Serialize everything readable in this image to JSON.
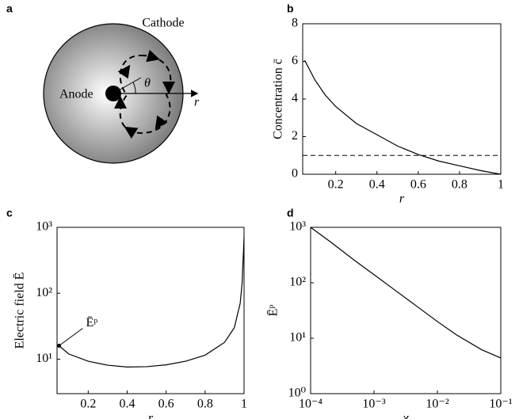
{
  "diagram": {
    "panel": "a",
    "cathode": "Cathode",
    "anode": "Anode",
    "angle": "θ",
    "axis": "r"
  },
  "chart_data": [
    {
      "panel": "b",
      "type": "line",
      "xlabel": "r",
      "ylabel": "Concentration c̄",
      "x": [
        0.05,
        0.1,
        0.15,
        0.2,
        0.3,
        0.4,
        0.5,
        0.6,
        0.7,
        0.8,
        0.9,
        1
      ],
      "values": [
        6.05,
        5.0,
        4.2,
        3.6,
        2.7,
        2.1,
        1.5,
        1.05,
        0.7,
        0.45,
        0.2,
        0
      ],
      "color": "#000000",
      "hline": 1,
      "xlim": [
        0.04,
        1
      ],
      "ylim": [
        0,
        8
      ],
      "xticks": [
        0.2,
        0.4,
        0.6,
        0.8,
        1
      ],
      "yticks": [
        0,
        2,
        4,
        6,
        8
      ]
    },
    {
      "panel": "c",
      "type": "line",
      "ylog": true,
      "xlabel": "r",
      "ylabel": "Electric field Ē",
      "annotation": "Ēᵖ",
      "x": [
        0.05,
        0.1,
        0.2,
        0.3,
        0.4,
        0.5,
        0.6,
        0.7,
        0.8,
        0.9,
        0.95,
        0.98,
        0.99,
        1
      ],
      "values": [
        16,
        12,
        9.3,
        8.1,
        7.6,
        7.7,
        8.2,
        9.3,
        11.5,
        18,
        30,
        70,
        140,
        700
      ],
      "color": "#000000",
      "xlim": [
        0.04,
        1
      ],
      "ylim": [
        3,
        1000
      ],
      "xticks": [
        0.2,
        0.4,
        0.6,
        0.8,
        1
      ],
      "yticks": [
        {
          "value": 10,
          "label": "10¹"
        },
        {
          "value": 100,
          "label": "10²"
        },
        {
          "value": 1000,
          "label": "10³"
        }
      ]
    },
    {
      "panel": "d",
      "type": "line",
      "xlog": true,
      "ylog": true,
      "xlabel": "χ",
      "ylabel": "Ēᵖ",
      "x": [
        0.0001,
        0.0002,
        0.0005,
        0.001,
        0.002,
        0.005,
        0.01,
        0.02,
        0.05,
        0.1
      ],
      "values": [
        1000,
        560,
        250,
        140,
        78,
        36,
        20,
        11.5,
        6.2,
        4.4
      ],
      "color": "#000000",
      "xlim": [
        0.0001,
        0.1
      ],
      "ylim": [
        1,
        1000
      ],
      "xticks": [
        {
          "value": 0.0001,
          "label": "10⁻⁴"
        },
        {
          "value": 0.001,
          "label": "10⁻³"
        },
        {
          "value": 0.01,
          "label": "10⁻²"
        },
        {
          "value": 0.1,
          "label": "10⁻¹"
        }
      ],
      "yticks": [
        {
          "value": 1,
          "label": "10⁰"
        },
        {
          "value": 10,
          "label": "10¹"
        },
        {
          "value": 100,
          "label": "10²"
        },
        {
          "value": 1000,
          "label": "10³"
        }
      ]
    }
  ]
}
